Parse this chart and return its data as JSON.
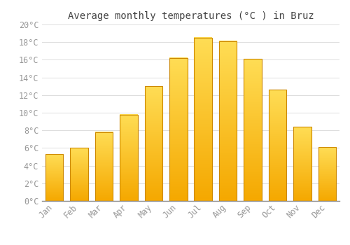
{
  "title": "Average monthly temperatures (°C ) in Bruz",
  "months": [
    "Jan",
    "Feb",
    "Mar",
    "Apr",
    "May",
    "Jun",
    "Jul",
    "Aug",
    "Sep",
    "Oct",
    "Nov",
    "Dec"
  ],
  "values": [
    5.3,
    6.0,
    7.8,
    9.8,
    13.0,
    16.2,
    18.5,
    18.1,
    16.1,
    12.6,
    8.4,
    6.1
  ],
  "bar_color_bottom": "#F5A800",
  "bar_color_top": "#FFDD55",
  "bar_edge_color": "#CC8800",
  "background_color": "#FFFFFF",
  "grid_color": "#DDDDDD",
  "text_color": "#999999",
  "ylim": [
    0,
    20
  ],
  "yticks": [
    0,
    2,
    4,
    6,
    8,
    10,
    12,
    14,
    16,
    18,
    20
  ],
  "title_fontsize": 10,
  "tick_fontsize": 8.5
}
